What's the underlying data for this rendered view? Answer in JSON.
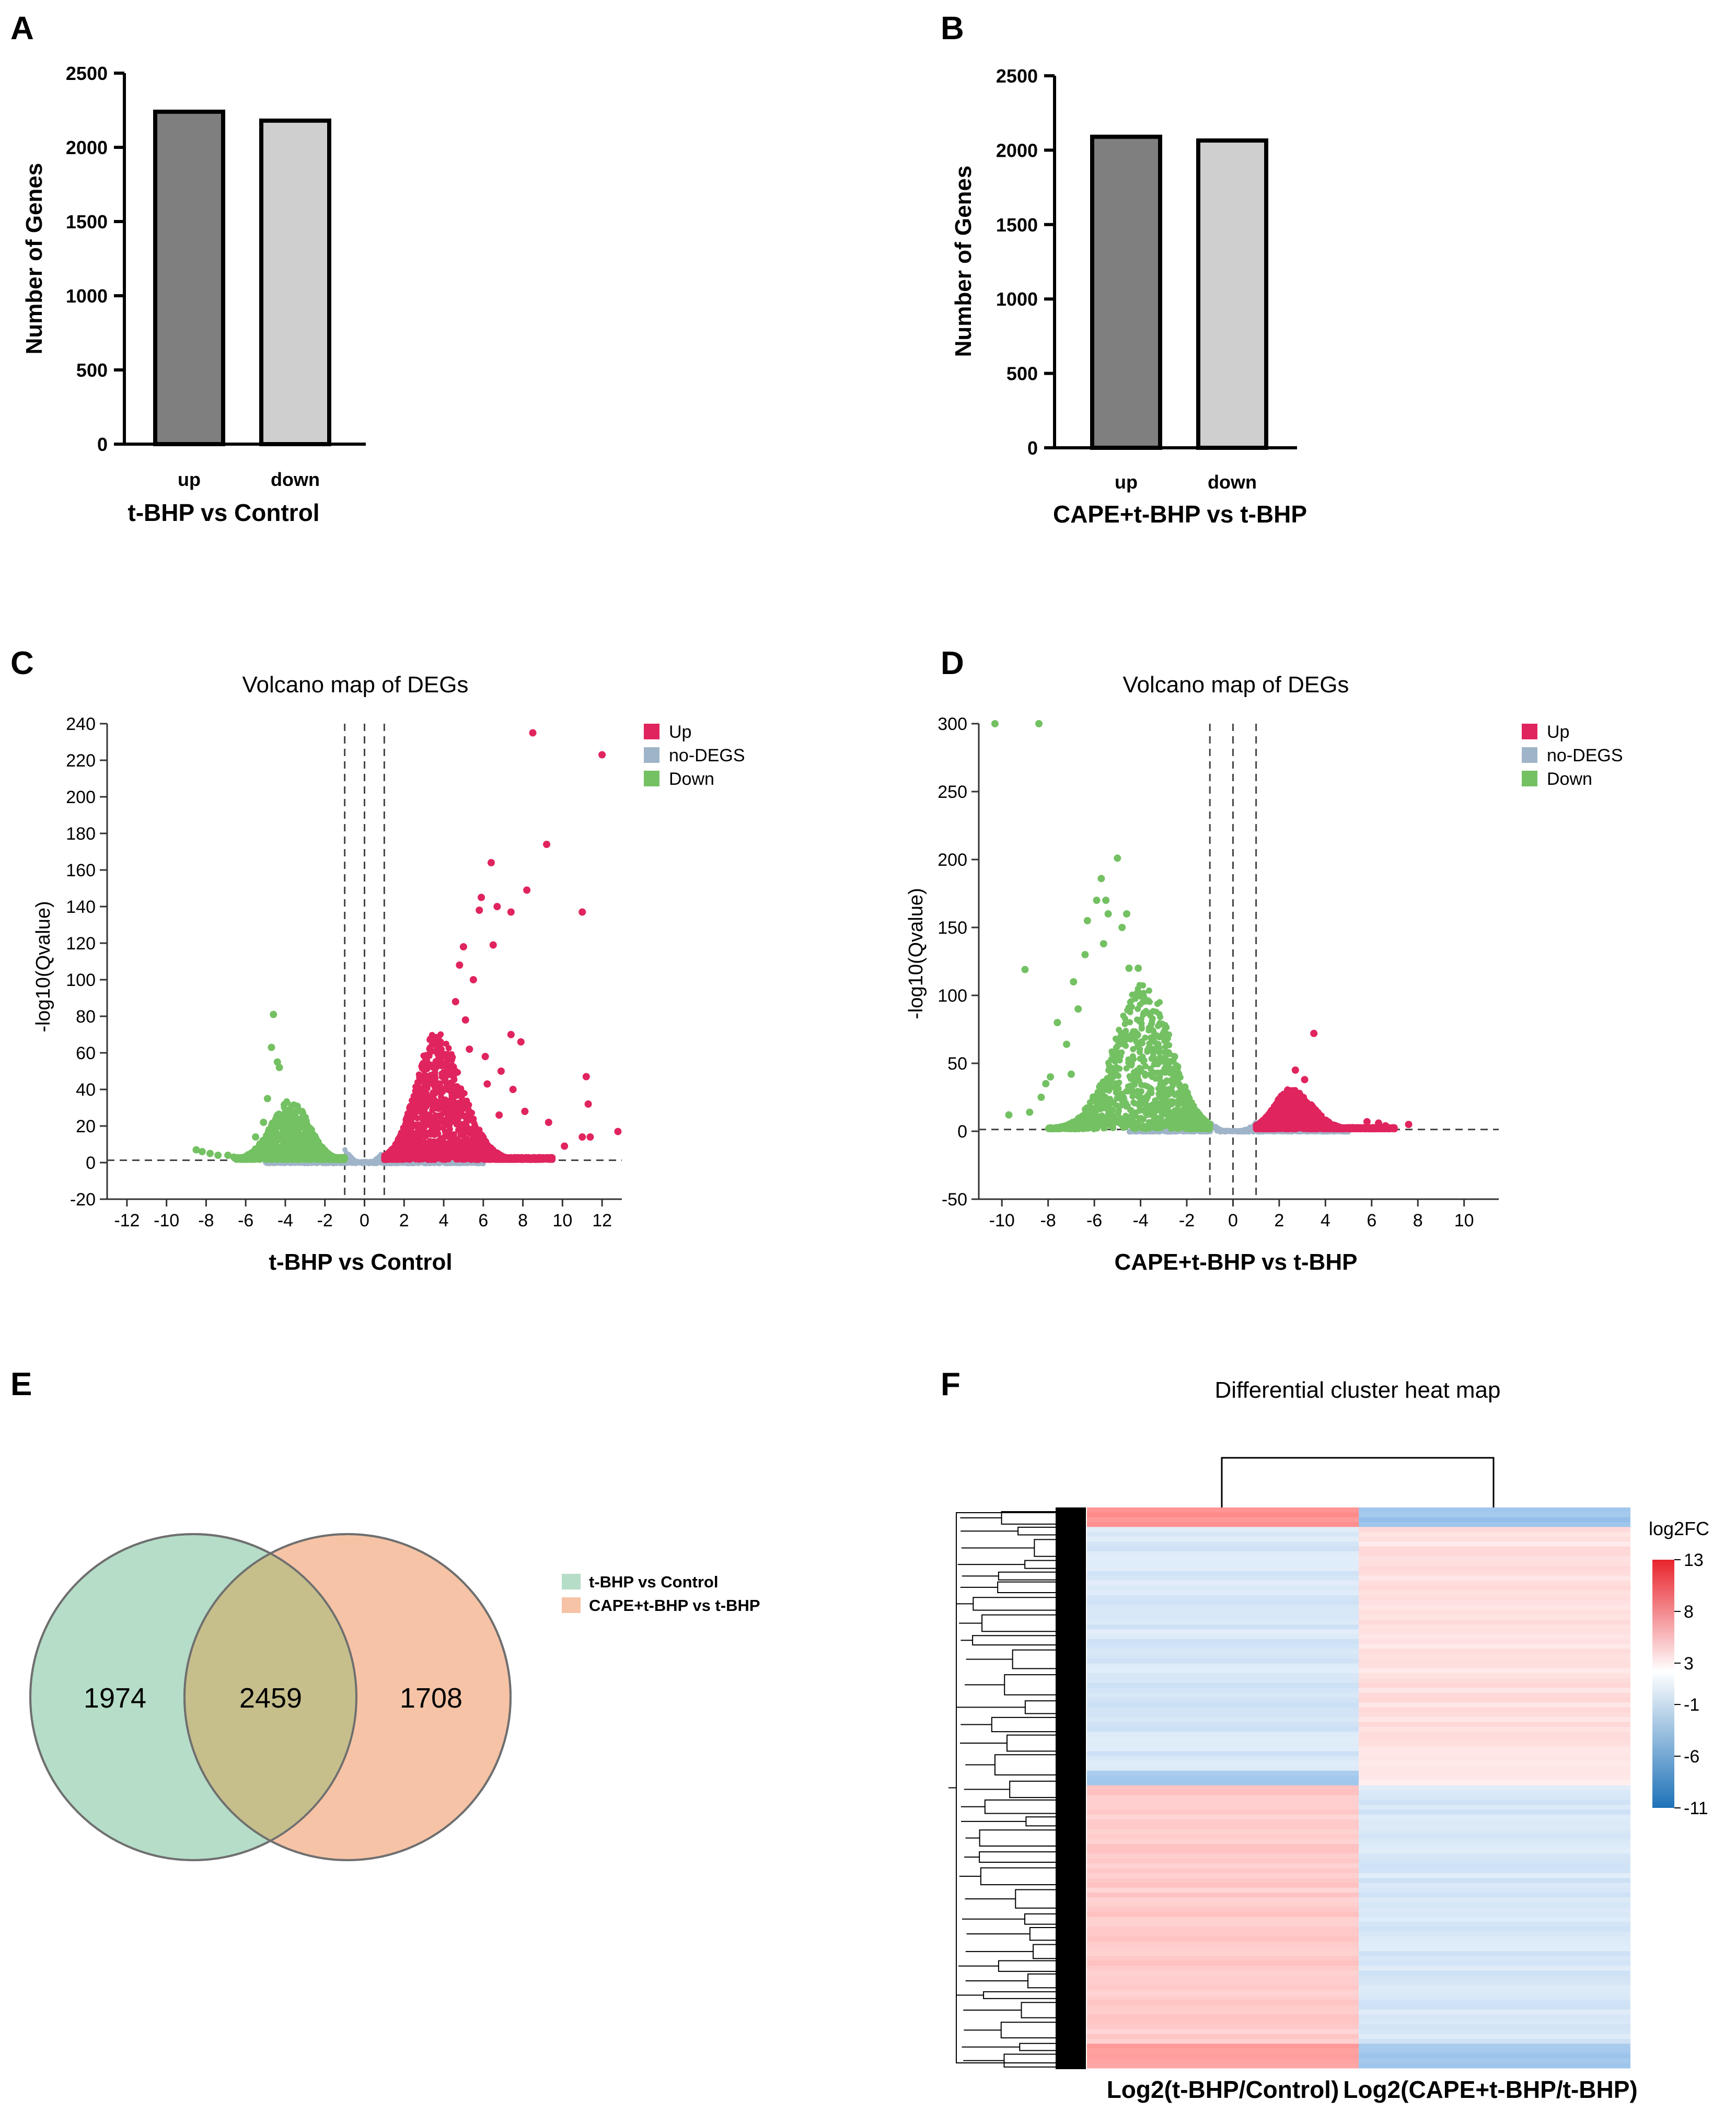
{
  "chart_data": [
    {
      "panel": "A",
      "type": "bar",
      "title": "t-BHP vs Control",
      "ylabel": "Number of Genes",
      "categories": [
        "up",
        "down"
      ],
      "values": [
        2240,
        2180
      ],
      "bar_colors": [
        "#7f7f7f",
        "#cfcfcf"
      ],
      "ylim": [
        0,
        2500
      ],
      "yticks": [
        0,
        500,
        1000,
        1500,
        2000,
        2500
      ]
    },
    {
      "panel": "B",
      "type": "bar",
      "title": "CAPE+t-BHP vs t-BHP",
      "ylabel": "Number of Genes",
      "categories": [
        "up",
        "down"
      ],
      "values": [
        2090,
        2065
      ],
      "bar_colors": [
        "#7f7f7f",
        "#cfcfcf"
      ],
      "ylim": [
        0,
        2500
      ],
      "yticks": [
        0,
        500,
        1000,
        1500,
        2000,
        2500
      ]
    },
    {
      "panel": "C",
      "type": "scatter",
      "title": "Volcano map of DEGs",
      "xlabel": "t-BHP vs Control",
      "ylabel": "-log10(Qvalue)",
      "xlim": [
        -13,
        13
      ],
      "ylim": [
        -20,
        240
      ],
      "xticks": [
        -12,
        -10,
        -8,
        -6,
        -4,
        -2,
        0,
        2,
        4,
        6,
        8,
        10,
        12
      ],
      "yticks": [
        -20,
        0,
        20,
        40,
        60,
        80,
        100,
        120,
        140,
        160,
        180,
        200,
        220,
        240
      ],
      "vlines": [
        -1,
        0,
        1
      ],
      "hline": 1.3,
      "legend": [
        "Up",
        "no-DEGS",
        "Down"
      ],
      "colors": {
        "Up": "#e0245e",
        "no-DEGS": "#9fb4c8",
        "Down": "#74c163"
      },
      "envelopes": {
        "up": {
          "peak_x": 3.6,
          "peak_y": 70,
          "sigma_left": 1.0,
          "sigma_right": 1.3,
          "base_x": 1.0,
          "max_x": 9.5
        },
        "down": {
          "peak_x": -3.7,
          "peak_y": 33,
          "sigma_left": 1.0,
          "sigma_right": 0.9,
          "base_x": -1.0,
          "min_x": -6.5
        },
        "nodeg": {
          "min_x": -5,
          "max_x": 6
        }
      },
      "outliers_up": [
        [
          8.5,
          235
        ],
        [
          12,
          223
        ],
        [
          9.2,
          174
        ],
        [
          6.4,
          164
        ],
        [
          8.2,
          149
        ],
        [
          5.9,
          145
        ],
        [
          11,
          137
        ],
        [
          5.8,
          138
        ],
        [
          6.7,
          140
        ],
        [
          7.4,
          137
        ],
        [
          5,
          118
        ],
        [
          6.5,
          119
        ],
        [
          4.8,
          108
        ],
        [
          5.5,
          100
        ],
        [
          7.4,
          70
        ],
        [
          7.9,
          66
        ],
        [
          11.2,
          47
        ],
        [
          11.3,
          32
        ],
        [
          12.8,
          17
        ],
        [
          11,
          14
        ],
        [
          11.4,
          14
        ],
        [
          6.9,
          50
        ],
        [
          7.5,
          40
        ],
        [
          6.1,
          58
        ],
        [
          5.3,
          62
        ],
        [
          4.6,
          88
        ],
        [
          5.1,
          78
        ],
        [
          6.2,
          43
        ],
        [
          8.1,
          28
        ],
        [
          9.3,
          22
        ],
        [
          10.1,
          9
        ],
        [
          6.8,
          26
        ]
      ],
      "outliers_down": [
        [
          -4.6,
          81
        ],
        [
          -4.7,
          63
        ],
        [
          -4.4,
          55
        ],
        [
          -4.3,
          52
        ],
        [
          -8.5,
          7
        ],
        [
          -8.2,
          6
        ],
        [
          -7.8,
          5
        ],
        [
          -7.4,
          4
        ],
        [
          -6.9,
          4
        ],
        [
          -6.6,
          3
        ],
        [
          -5.8,
          4
        ],
        [
          -5.5,
          14
        ],
        [
          -5.1,
          22
        ],
        [
          -4.9,
          35
        ]
      ]
    },
    {
      "panel": "D",
      "type": "scatter",
      "title": "Volcano map of DEGs",
      "xlabel": "CAPE+t-BHP vs t-BHP",
      "ylabel": "-log10(Qvalue)",
      "xlim": [
        -11,
        11.5
      ],
      "ylim": [
        -50,
        300
      ],
      "xticks": [
        -10,
        -8,
        -6,
        -4,
        -2,
        0,
        2,
        4,
        6,
        8,
        10
      ],
      "yticks": [
        -50,
        0,
        50,
        100,
        150,
        200,
        250,
        300
      ],
      "vlines": [
        -1,
        0,
        1
      ],
      "hline": 1.3,
      "legend": [
        "Up",
        "no-DEGS",
        "Down"
      ],
      "colors": {
        "Up": "#e0245e",
        "no-DEGS": "#9fb4c8",
        "Down": "#74c163"
      },
      "envelopes": {
        "up": {
          "peak_x": 2.5,
          "peak_y": 30,
          "sigma_left": 0.7,
          "sigma_right": 0.9,
          "base_x": 1.0,
          "max_x": 7.0
        },
        "down": {
          "peak_x": -3.8,
          "peak_y": 110,
          "sigma_left": 1.3,
          "sigma_right": 1.1,
          "base_x": -1.0,
          "min_x": -8.0
        },
        "nodeg": {
          "min_x": -4.5,
          "max_x": 5
        }
      },
      "outliers_up": [
        [
          3.5,
          72
        ],
        [
          2.7,
          45
        ],
        [
          3.1,
          38
        ],
        [
          7.6,
          5
        ],
        [
          6.3,
          6
        ],
        [
          5.8,
          7
        ],
        [
          6.6,
          4
        ]
      ],
      "outliers_down": [
        [
          -10.3,
          300
        ],
        [
          -8.4,
          300
        ],
        [
          -5,
          201
        ],
        [
          -5.7,
          186
        ],
        [
          -5.5,
          170
        ],
        [
          -5.9,
          170
        ],
        [
          -4.6,
          160
        ],
        [
          -5.4,
          160
        ],
        [
          -6.3,
          155
        ],
        [
          -4.8,
          150
        ],
        [
          -5.6,
          138
        ],
        [
          -6.4,
          130
        ],
        [
          -9,
          119
        ],
        [
          -6.9,
          110
        ],
        [
          -8.1,
          35
        ],
        [
          -9.7,
          12
        ],
        [
          -8.8,
          14
        ],
        [
          -7.6,
          80
        ],
        [
          -7.2,
          64
        ],
        [
          -6.7,
          90
        ],
        [
          -4.5,
          120
        ],
        [
          -4.1,
          120
        ],
        [
          -7.9,
          40
        ],
        [
          -8.3,
          25
        ],
        [
          -7,
          42
        ]
      ]
    },
    {
      "panel": "E",
      "type": "venn",
      "sets": [
        "t-BHP vs Control",
        "CAPE+t-BHP vs t-BHP"
      ],
      "only_a": 1974,
      "intersection": 2459,
      "only_b": 1708,
      "colors": [
        "#b5ddc7",
        "#f6c3a6",
        "#c6bf8c"
      ]
    },
    {
      "panel": "F",
      "type": "heatmap",
      "title": "Differential cluster heat map",
      "columns": [
        "Log2(t-BHP/Control)",
        "Log2(CAPE+t-BHP/t-BHP)"
      ],
      "colorbar_title": "log2FC",
      "colorbar_ticks": [
        13,
        8,
        3,
        -1,
        -6,
        -11
      ],
      "colorbar_range": [
        -11,
        13
      ],
      "blocks": [
        {
          "rows": 4,
          "col1": 4.5,
          "col2": -4.0
        },
        {
          "rows": 50,
          "col1": -1.6,
          "col2": 1.3
        },
        {
          "rows": 3,
          "col1": -3.5,
          "col2": 1.0
        },
        {
          "rows": 53,
          "col1": 2.2,
          "col2": -1.6
        },
        {
          "rows": 5,
          "col1": 4.0,
          "col2": -3.8
        }
      ]
    }
  ],
  "panel_labels": {
    "A": "A",
    "B": "B",
    "C": "C",
    "D": "D",
    "E": "E",
    "F": "F"
  }
}
